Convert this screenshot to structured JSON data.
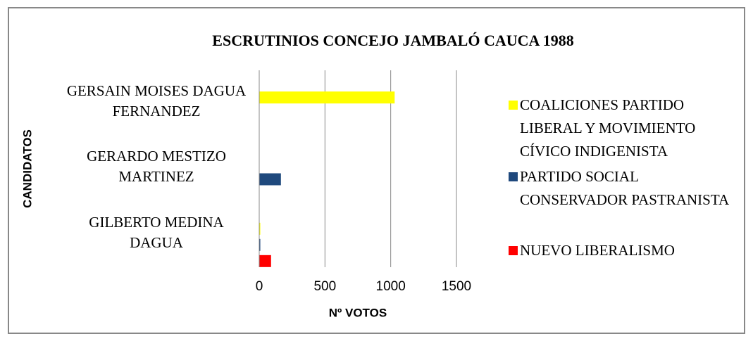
{
  "chart_data": {
    "type": "bar",
    "orientation": "horizontal",
    "title": "ESCRUTINIOS CONCEJO JAMBALÓ CAUCA 1988",
    "x_label": "Nº VOTOS",
    "y_label": "CANDIDATOS",
    "categories": [
      "GERSAIN MOISES DAGUA FERNANDEZ",
      "GERARDO MESTIZO MARTINEZ",
      "GILBERTO MEDINA DAGUA"
    ],
    "series": [
      {
        "name": "COALICIONES PARTIDO LIBERAL Y MOVIMIENTO CÍVICO INDIGENISTA",
        "color": "#ffff00",
        "values": [
          1030,
          null,
          8
        ]
      },
      {
        "name": "PARTIDO SOCIAL CONSERVADOR PASTRANISTA",
        "color": "#1f497d",
        "values": [
          null,
          165,
          8
        ]
      },
      {
        "name": "NUEVO LIBERALISMO",
        "color": "#ff0000",
        "values": [
          null,
          null,
          90
        ]
      }
    ],
    "xlim": [
      0,
      1500
    ],
    "xticks": [
      0,
      500,
      1000,
      1500
    ],
    "grid": true,
    "legend": "right"
  }
}
